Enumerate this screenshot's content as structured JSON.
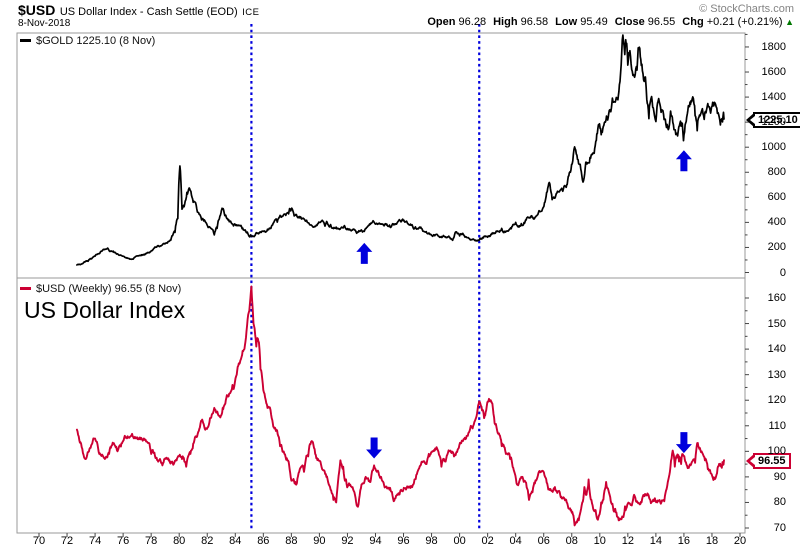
{
  "header": {
    "symbol": "$USD",
    "title": "US Dollar Index - Cash Settle (EOD)",
    "exchange": "ICE",
    "date": "8-Nov-2018",
    "copyright": "© StockCharts.com",
    "quote": [
      {
        "label": "Open",
        "value": "96.28"
      },
      {
        "label": "High",
        "value": "96.58"
      },
      {
        "label": "Low",
        "value": "95.49"
      },
      {
        "label": "Close",
        "value": "96.55"
      },
      {
        "label": "Chg",
        "value": "+0.21 (+0.21%)"
      }
    ],
    "change_direction": "up",
    "change_color": "#007700"
  },
  "gold_panel": {
    "legend": "$GOLD 1225.10 (8 Nov)",
    "price_tag": "1225.10",
    "line_color": "#000000",
    "y_ticks": [
      1800,
      1600,
      1400,
      1200,
      1000,
      800,
      600,
      400,
      200,
      0
    ],
    "last_value": 1225.1
  },
  "usd_panel": {
    "legend": "$USD (Weekly) 96.55 (8 Nov)",
    "big_label": "US Dollar Index",
    "price_tag": "96.55",
    "line_color": "#cc0033",
    "y_ticks": [
      160,
      150,
      140,
      130,
      120,
      110,
      100,
      90,
      80,
      70
    ],
    "last_value": 96.55
  },
  "x_axis": {
    "labels": [
      "70",
      "72",
      "74",
      "76",
      "78",
      "80",
      "82",
      "84",
      "86",
      "88",
      "90",
      "92",
      "94",
      "96",
      "98",
      "00",
      "02",
      "04",
      "06",
      "08",
      "10",
      "12",
      "14",
      "16",
      "18",
      "20"
    ],
    "start_year": 1970,
    "step_years": 2
  },
  "annotations": {
    "color": "#0000dd",
    "vlines_years": [
      1985.15,
      2001.4
    ],
    "arrows": [
      {
        "panel": "gold",
        "year": 1993.2,
        "dir": "up",
        "tip_value": 236
      },
      {
        "panel": "gold",
        "year": 2016.0,
        "dir": "up",
        "tip_value": 975
      },
      {
        "panel": "usd",
        "year": 1993.9,
        "dir": "down",
        "tip_value": 97.2
      },
      {
        "panel": "usd",
        "year": 2016.0,
        "dir": "down",
        "tip_value": 99.3
      }
    ]
  },
  "chart_data": [
    {
      "name": "$GOLD",
      "type": "line",
      "panel": "gold",
      "color": "#000000",
      "ylim": [
        0,
        1912
      ],
      "x_unit": "year",
      "y_unit": "USD/oz",
      "points": [
        [
          1972.7,
          60
        ],
        [
          1973.0,
          66
        ],
        [
          1973.5,
          90
        ],
        [
          1974.0,
          130
        ],
        [
          1974.4,
          168
        ],
        [
          1974.9,
          195
        ],
        [
          1975.3,
          170
        ],
        [
          1975.8,
          140
        ],
        [
          1976.6,
          105
        ],
        [
          1977.0,
          132
        ],
        [
          1977.5,
          146
        ],
        [
          1978.0,
          172
        ],
        [
          1978.7,
          212
        ],
        [
          1979.0,
          230
        ],
        [
          1979.4,
          258
        ],
        [
          1979.7,
          320
        ],
        [
          1979.9,
          430
        ],
        [
          1980.05,
          850
        ],
        [
          1980.2,
          505
        ],
        [
          1980.35,
          525
        ],
        [
          1980.55,
          640
        ],
        [
          1980.75,
          668
        ],
        [
          1981.0,
          560
        ],
        [
          1981.3,
          482
        ],
        [
          1981.6,
          420
        ],
        [
          1981.9,
          400
        ],
        [
          1982.2,
          360
        ],
        [
          1982.5,
          300
        ],
        [
          1982.7,
          352
        ],
        [
          1982.9,
          450
        ],
        [
          1983.1,
          505
        ],
        [
          1983.4,
          430
        ],
        [
          1983.7,
          400
        ],
        [
          1984.0,
          382
        ],
        [
          1984.4,
          376
        ],
        [
          1984.7,
          340
        ],
        [
          1985.1,
          300
        ],
        [
          1985.5,
          318
        ],
        [
          1985.9,
          330
        ],
        [
          1986.3,
          345
        ],
        [
          1986.7,
          392
        ],
        [
          1987.0,
          402
        ],
        [
          1987.4,
          450
        ],
        [
          1987.8,
          468
        ],
        [
          1987.95,
          492
        ],
        [
          1988.2,
          452
        ],
        [
          1988.6,
          436
        ],
        [
          1989.0,
          410
        ],
        [
          1989.3,
          382
        ],
        [
          1989.7,
          366
        ],
        [
          1990.0,
          400
        ],
        [
          1990.4,
          370
        ],
        [
          1990.8,
          382
        ],
        [
          1991.2,
          362
        ],
        [
          1991.7,
          356
        ],
        [
          1992.0,
          350
        ],
        [
          1992.5,
          340
        ],
        [
          1992.9,
          330
        ],
        [
          1993.2,
          328
        ],
        [
          1993.5,
          376
        ],
        [
          1993.7,
          392
        ],
        [
          1994.0,
          386
        ],
        [
          1994.5,
          384
        ],
        [
          1995.0,
          378
        ],
        [
          1995.5,
          386
        ],
        [
          1996.1,
          402
        ],
        [
          1996.5,
          386
        ],
        [
          1997.0,
          350
        ],
        [
          1997.5,
          325
        ],
        [
          1998.0,
          296
        ],
        [
          1998.5,
          290
        ],
        [
          1999.0,
          286
        ],
        [
          1999.5,
          257
        ],
        [
          1999.72,
          324
        ],
        [
          2000.0,
          292
        ],
        [
          2000.5,
          280
        ],
        [
          2001.0,
          266
        ],
        [
          2001.3,
          258
        ],
        [
          2001.7,
          276
        ],
        [
          2002.0,
          282
        ],
        [
          2002.5,
          315
        ],
        [
          2003.0,
          352
        ],
        [
          2003.4,
          332
        ],
        [
          2004.0,
          400
        ],
        [
          2004.4,
          390
        ],
        [
          2004.9,
          440
        ],
        [
          2005.3,
          426
        ],
        [
          2005.9,
          502
        ],
        [
          2006.4,
          718
        ],
        [
          2006.6,
          582
        ],
        [
          2006.9,
          630
        ],
        [
          2007.2,
          660
        ],
        [
          2007.6,
          680
        ],
        [
          2007.9,
          800
        ],
        [
          2008.2,
          1002
        ],
        [
          2008.45,
          900
        ],
        [
          2008.8,
          722
        ],
        [
          2009.0,
          880
        ],
        [
          2009.3,
          918
        ],
        [
          2009.6,
          952
        ],
        [
          2009.9,
          1178
        ],
        [
          2010.1,
          1100
        ],
        [
          2010.4,
          1200
        ],
        [
          2010.6,
          1238
        ],
        [
          2010.9,
          1392
        ],
        [
          2011.1,
          1360
        ],
        [
          2011.4,
          1500
        ],
        [
          2011.65,
          1895
        ],
        [
          2011.78,
          1740
        ],
        [
          2011.88,
          1820
        ],
        [
          2012.0,
          1655
        ],
        [
          2012.15,
          1770
        ],
        [
          2012.4,
          1580
        ],
        [
          2012.65,
          1615
        ],
        [
          2012.78,
          1782
        ],
        [
          2013.0,
          1662
        ],
        [
          2013.25,
          1560
        ],
        [
          2013.35,
          1380
        ],
        [
          2013.5,
          1228
        ],
        [
          2013.65,
          1388
        ],
        [
          2013.9,
          1252
        ],
        [
          2014.0,
          1205
        ],
        [
          2014.2,
          1388
        ],
        [
          2014.5,
          1292
        ],
        [
          2014.8,
          1182
        ],
        [
          2015.05,
          1288
        ],
        [
          2015.25,
          1180
        ],
        [
          2015.55,
          1090
        ],
        [
          2015.8,
          1168
        ],
        [
          2015.97,
          1052
        ],
        [
          2016.2,
          1240
        ],
        [
          2016.55,
          1362
        ],
        [
          2016.8,
          1252
        ],
        [
          2016.95,
          1132
        ],
        [
          2017.15,
          1250
        ],
        [
          2017.45,
          1222
        ],
        [
          2017.7,
          1348
        ],
        [
          2017.9,
          1272
        ],
        [
          2018.05,
          1358
        ],
        [
          2018.3,
          1322
        ],
        [
          2018.6,
          1178
        ],
        [
          2018.75,
          1202
        ],
        [
          2018.86,
          1225.1
        ]
      ]
    },
    {
      "name": "$USD",
      "type": "line",
      "panel": "usd",
      "color": "#cc0033",
      "ylim": [
        68,
        165
      ],
      "x_unit": "year",
      "y_unit": "index",
      "points": [
        [
          1972.7,
          108.5
        ],
        [
          1973.0,
          103
        ],
        [
          1973.3,
          97
        ],
        [
          1973.6,
          101
        ],
        [
          1974.0,
          105
        ],
        [
          1974.3,
          99
        ],
        [
          1974.7,
          97
        ],
        [
          1975.0,
          99
        ],
        [
          1975.3,
          103
        ],
        [
          1975.6,
          100
        ],
        [
          1976.0,
          104
        ],
        [
          1976.4,
          105.5
        ],
        [
          1977.0,
          105.5
        ],
        [
          1977.6,
          104.5
        ],
        [
          1978.0,
          99
        ],
        [
          1978.5,
          96
        ],
        [
          1978.8,
          94.5
        ],
        [
          1979.1,
          97.5
        ],
        [
          1979.5,
          96
        ],
        [
          1980.2,
          97
        ],
        [
          1980.5,
          94
        ],
        [
          1980.8,
          99
        ],
        [
          1981.0,
          103
        ],
        [
          1981.4,
          108
        ],
        [
          1981.6,
          112
        ],
        [
          1981.9,
          109
        ],
        [
          1982.2,
          113
        ],
        [
          1982.5,
          117
        ],
        [
          1982.8,
          114
        ],
        [
          1983.1,
          117
        ],
        [
          1983.4,
          122
        ],
        [
          1983.8,
          126
        ],
        [
          1984.1,
          130
        ],
        [
          1984.4,
          136
        ],
        [
          1984.65,
          140
        ],
        [
          1984.8,
          147
        ],
        [
          1985.0,
          155
        ],
        [
          1985.15,
          164.5
        ],
        [
          1985.3,
          150
        ],
        [
          1985.5,
          141
        ],
        [
          1985.65,
          143
        ],
        [
          1985.8,
          132
        ],
        [
          1986.0,
          124
        ],
        [
          1986.3,
          117
        ],
        [
          1986.6,
          113
        ],
        [
          1986.9,
          108
        ],
        [
          1987.2,
          102
        ],
        [
          1987.5,
          99
        ],
        [
          1987.8,
          96
        ],
        [
          1988.0,
          88.5
        ],
        [
          1988.35,
          87
        ],
        [
          1988.6,
          93
        ],
        [
          1988.9,
          92
        ],
        [
          1989.2,
          98
        ],
        [
          1989.45,
          104
        ],
        [
          1989.7,
          99
        ],
        [
          1989.9,
          97
        ],
        [
          1990.2,
          93
        ],
        [
          1990.5,
          90
        ],
        [
          1990.8,
          85
        ],
        [
          1991.0,
          81
        ],
        [
          1991.2,
          80
        ],
        [
          1991.5,
          96.5
        ],
        [
          1991.7,
          94
        ],
        [
          1991.9,
          89
        ],
        [
          1992.2,
          87
        ],
        [
          1992.5,
          84
        ],
        [
          1992.7,
          78.5
        ],
        [
          1993.0,
          87
        ],
        [
          1993.3,
          90
        ],
        [
          1993.6,
          88
        ],
        [
          1993.9,
          94.5
        ],
        [
          1994.1,
          92
        ],
        [
          1994.4,
          90
        ],
        [
          1994.7,
          86
        ],
        [
          1995.0,
          85
        ],
        [
          1995.3,
          80.5
        ],
        [
          1995.6,
          83
        ],
        [
          1995.9,
          84.5
        ],
        [
          1996.3,
          86
        ],
        [
          1996.7,
          87
        ],
        [
          1997.0,
          92
        ],
        [
          1997.4,
          96
        ],
        [
          1997.8,
          99
        ],
        [
          1998.1,
          100
        ],
        [
          1998.4,
          101
        ],
        [
          1998.7,
          94
        ],
        [
          1999.0,
          96
        ],
        [
          1999.3,
          100
        ],
        [
          1999.6,
          98
        ],
        [
          1999.9,
          101
        ],
        [
          2000.2,
          104
        ],
        [
          2000.5,
          106
        ],
        [
          2000.8,
          110
        ],
        [
          2001.1,
          112
        ],
        [
          2001.4,
          119.5
        ],
        [
          2001.6,
          116
        ],
        [
          2001.75,
          113
        ],
        [
          2001.9,
          116
        ],
        [
          2002.1,
          120.5
        ],
        [
          2002.3,
          119
        ],
        [
          2002.5,
          111
        ],
        [
          2002.8,
          107
        ],
        [
          2003.0,
          102
        ],
        [
          2003.3,
          99
        ],
        [
          2003.6,
          97
        ],
        [
          2003.9,
          92
        ],
        [
          2004.1,
          87
        ],
        [
          2004.4,
          90
        ],
        [
          2004.7,
          88
        ],
        [
          2004.95,
          81
        ],
        [
          2005.2,
          84
        ],
        [
          2005.5,
          89
        ],
        [
          2005.8,
          92
        ],
        [
          2006.1,
          90
        ],
        [
          2006.4,
          85
        ],
        [
          2006.8,
          86
        ],
        [
          2007.1,
          84.5
        ],
        [
          2007.4,
          82
        ],
        [
          2007.8,
          77.5
        ],
        [
          2008.0,
          76
        ],
        [
          2008.2,
          71
        ],
        [
          2008.5,
          73
        ],
        [
          2008.75,
          80
        ],
        [
          2008.9,
          86
        ],
        [
          2009.05,
          83
        ],
        [
          2009.2,
          89
        ],
        [
          2009.4,
          81
        ],
        [
          2009.7,
          77
        ],
        [
          2009.95,
          75
        ],
        [
          2010.1,
          80
        ],
        [
          2010.45,
          88
        ],
        [
          2010.7,
          83
        ],
        [
          2010.9,
          79.5
        ],
        [
          2011.1,
          77.5
        ],
        [
          2011.35,
          73
        ],
        [
          2011.6,
          74.5
        ],
        [
          2011.8,
          78.5
        ],
        [
          2012.0,
          79.5
        ],
        [
          2012.2,
          79
        ],
        [
          2012.45,
          83
        ],
        [
          2012.7,
          80
        ],
        [
          2012.9,
          79.5
        ],
        [
          2013.15,
          82.5
        ],
        [
          2013.4,
          83.5
        ],
        [
          2013.6,
          81
        ],
        [
          2013.85,
          80.5
        ],
        [
          2014.1,
          80
        ],
        [
          2014.35,
          79.5
        ],
        [
          2014.6,
          80.5
        ],
        [
          2014.85,
          88
        ],
        [
          2015.0,
          92
        ],
        [
          2015.2,
          100.3
        ],
        [
          2015.35,
          94
        ],
        [
          2015.5,
          97.5
        ],
        [
          2015.65,
          96
        ],
        [
          2015.8,
          95
        ],
        [
          2015.95,
          98.5
        ],
        [
          2016.1,
          96
        ],
        [
          2016.35,
          93.5
        ],
        [
          2016.6,
          96
        ],
        [
          2016.8,
          95.5
        ],
        [
          2016.95,
          103.2
        ],
        [
          2017.1,
          101
        ],
        [
          2017.3,
          99.5
        ],
        [
          2017.5,
          96.5
        ],
        [
          2017.7,
          93
        ],
        [
          2017.9,
          91.5
        ],
        [
          2018.1,
          88.8
        ],
        [
          2018.25,
          89.5
        ],
        [
          2018.4,
          93.5
        ],
        [
          2018.55,
          95
        ],
        [
          2018.65,
          94.2
        ],
        [
          2018.75,
          95.8
        ],
        [
          2018.86,
          96.55
        ]
      ]
    }
  ]
}
